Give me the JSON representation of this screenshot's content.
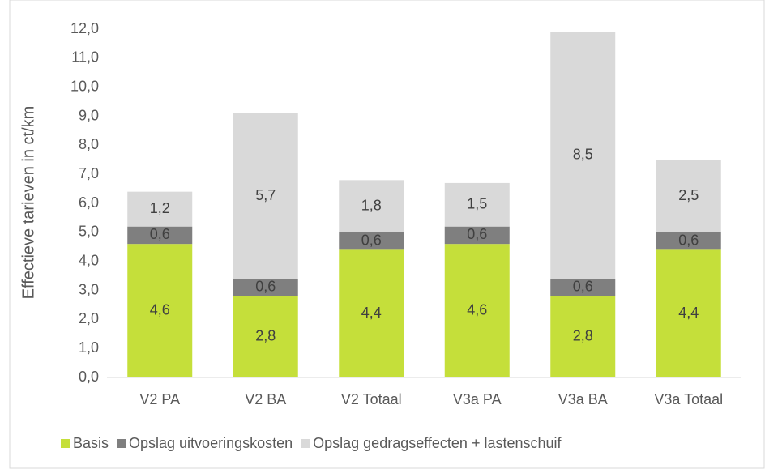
{
  "chart_data": {
    "type": "stacked_bar",
    "y_label": "Effectieve tarieven in ct/km",
    "categories": [
      "V2 PA",
      "V2 BA",
      "V2 Totaal",
      "V3a PA",
      "V3a BA",
      "V3a Totaal"
    ],
    "series": [
      {
        "name": "Basis",
        "color": "#c5df3a",
        "values": [
          4.6,
          2.8,
          4.4,
          4.6,
          2.8,
          4.4
        ],
        "value_labels": [
          "4,6",
          "2,8",
          "4,4",
          "4,6",
          "2,8",
          "4,4"
        ]
      },
      {
        "name": "Opslag uitvoeringskosten",
        "color": "#7f7f7f",
        "values": [
          0.6,
          0.6,
          0.6,
          0.6,
          0.6,
          0.6
        ],
        "value_labels": [
          "0,6",
          "0,6",
          "0,6",
          "0,6",
          "0,6",
          "0,6"
        ]
      },
      {
        "name": "Opslag gedragseffecten + lastenschuif",
        "color": "#d9d9d9",
        "values": [
          1.2,
          5.7,
          1.8,
          1.5,
          8.5,
          2.5
        ],
        "value_labels": [
          "1,2",
          "5,7",
          "1,8",
          "1,5",
          "8,5",
          "2,5"
        ]
      }
    ],
    "ylim": [
      0,
      12
    ],
    "yticks": [
      {
        "value": 0,
        "label": "0,0"
      },
      {
        "value": 1,
        "label": "1,0"
      },
      {
        "value": 2,
        "label": "2,0"
      },
      {
        "value": 3,
        "label": "3,0"
      },
      {
        "value": 4,
        "label": "4,0"
      },
      {
        "value": 5,
        "label": "5,0"
      },
      {
        "value": 6,
        "label": "6,0"
      },
      {
        "value": 7,
        "label": "7,0"
      },
      {
        "value": 8,
        "label": "8,0"
      },
      {
        "value": 9,
        "label": "9,0"
      },
      {
        "value": 10,
        "label": "10,0"
      },
      {
        "value": 11,
        "label": "11,0"
      },
      {
        "value": 12,
        "label": "12,0"
      }
    ],
    "grid": false,
    "legend": "bottom"
  }
}
